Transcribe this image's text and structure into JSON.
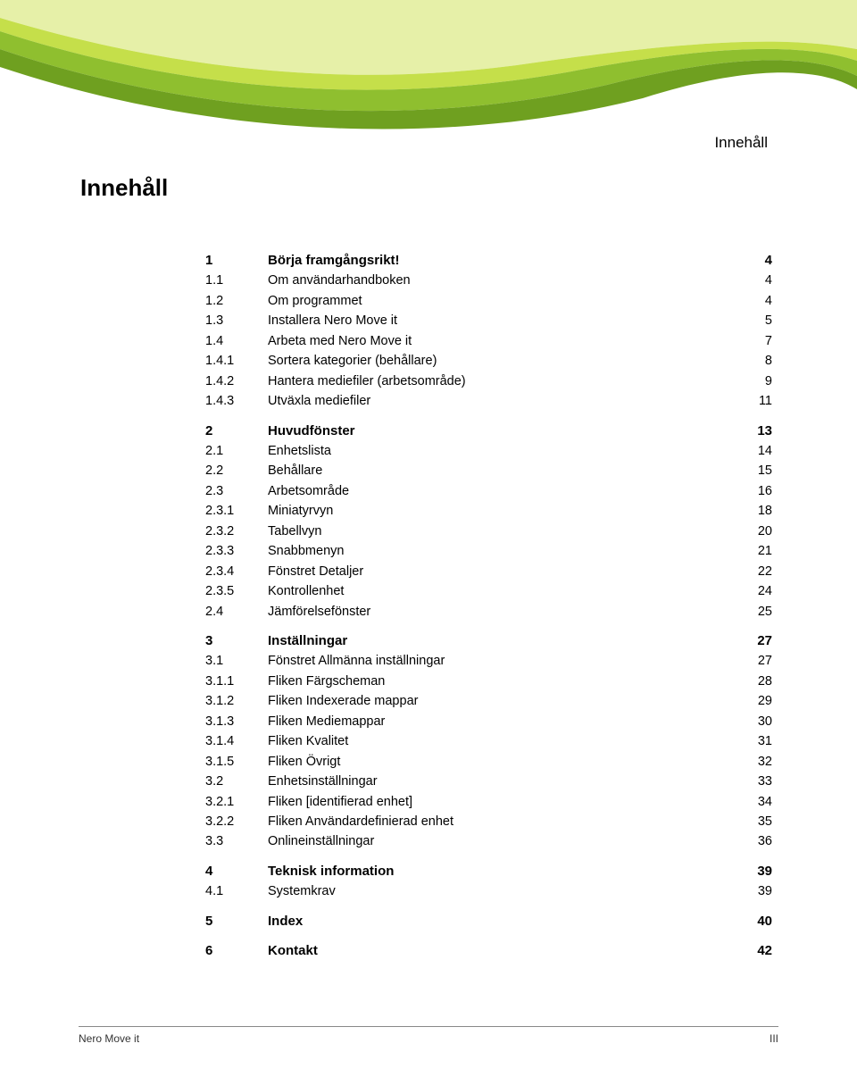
{
  "header_label": "Innehåll",
  "main_title": "Innehåll",
  "footer_left": "Nero Move it",
  "footer_right": "III",
  "wave_colors": {
    "light": "#e6f0a8",
    "mid": "#c5df4a",
    "dark": "#8fbf2f",
    "darker": "#6fa020"
  },
  "toc": [
    {
      "level": 1,
      "num": "1",
      "title": "Börja framgångsrikt!",
      "page": "4"
    },
    {
      "level": 2,
      "num": "1.1",
      "title": "Om användarhandboken",
      "page": "4"
    },
    {
      "level": 2,
      "num": "1.2",
      "title": "Om programmet",
      "page": "4"
    },
    {
      "level": 2,
      "num": "1.3",
      "title": "Installera Nero Move it",
      "page": "5"
    },
    {
      "level": 2,
      "num": "1.4",
      "title": "Arbeta med Nero Move it",
      "page": "7"
    },
    {
      "level": 3,
      "num": "1.4.1",
      "title": "Sortera kategorier (behållare)",
      "page": "8"
    },
    {
      "level": 3,
      "num": "1.4.2",
      "title": "Hantera mediefiler (arbetsområde)",
      "page": "9"
    },
    {
      "level": 3,
      "num": "1.4.3",
      "title": "Utväxla mediefiler",
      "page": "11"
    },
    {
      "level": 1,
      "num": "2",
      "title": "Huvudfönster",
      "page": "13"
    },
    {
      "level": 2,
      "num": "2.1",
      "title": "Enhetslista",
      "page": "14"
    },
    {
      "level": 2,
      "num": "2.2",
      "title": "Behållare",
      "page": "15"
    },
    {
      "level": 2,
      "num": "2.3",
      "title": "Arbetsområde",
      "page": "16"
    },
    {
      "level": 3,
      "num": "2.3.1",
      "title": "Miniatyrvyn",
      "page": "18"
    },
    {
      "level": 3,
      "num": "2.3.2",
      "title": "Tabellvyn",
      "page": "20"
    },
    {
      "level": 3,
      "num": "2.3.3",
      "title": "Snabbmenyn",
      "page": "21"
    },
    {
      "level": 3,
      "num": "2.3.4",
      "title": "Fönstret Detaljer",
      "page": "22"
    },
    {
      "level": 3,
      "num": "2.3.5",
      "title": "Kontrollenhet",
      "page": "24"
    },
    {
      "level": 2,
      "num": "2.4",
      "title": "Jämförelsefönster",
      "page": "25"
    },
    {
      "level": 1,
      "num": "3",
      "title": "Inställningar",
      "page": "27"
    },
    {
      "level": 2,
      "num": "3.1",
      "title": "Fönstret Allmänna inställningar",
      "page": "27"
    },
    {
      "level": 3,
      "num": "3.1.1",
      "title": "Fliken Färgscheman",
      "page": "28"
    },
    {
      "level": 3,
      "num": "3.1.2",
      "title": "Fliken Indexerade mappar",
      "page": "29"
    },
    {
      "level": 3,
      "num": "3.1.3",
      "title": "Fliken Mediemappar",
      "page": "30"
    },
    {
      "level": 3,
      "num": "3.1.4",
      "title": "Fliken Kvalitet",
      "page": "31"
    },
    {
      "level": 3,
      "num": "3.1.5",
      "title": "Fliken Övrigt",
      "page": "32"
    },
    {
      "level": 2,
      "num": "3.2",
      "title": "Enhetsinställningar",
      "page": "33"
    },
    {
      "level": 3,
      "num": "3.2.1",
      "title": "Fliken [identifierad enhet]",
      "page": "34"
    },
    {
      "level": 3,
      "num": "3.2.2",
      "title": "Fliken Användardefinierad enhet",
      "page": "35"
    },
    {
      "level": 2,
      "num": "3.3",
      "title": "Onlineinställningar",
      "page": "36"
    },
    {
      "level": 1,
      "num": "4",
      "title": "Teknisk information",
      "page": "39"
    },
    {
      "level": 2,
      "num": "4.1",
      "title": "Systemkrav",
      "page": "39"
    },
    {
      "level": 1,
      "num": "5",
      "title": "Index",
      "page": "40"
    },
    {
      "level": 1,
      "num": "6",
      "title": "Kontakt",
      "page": "42"
    }
  ]
}
